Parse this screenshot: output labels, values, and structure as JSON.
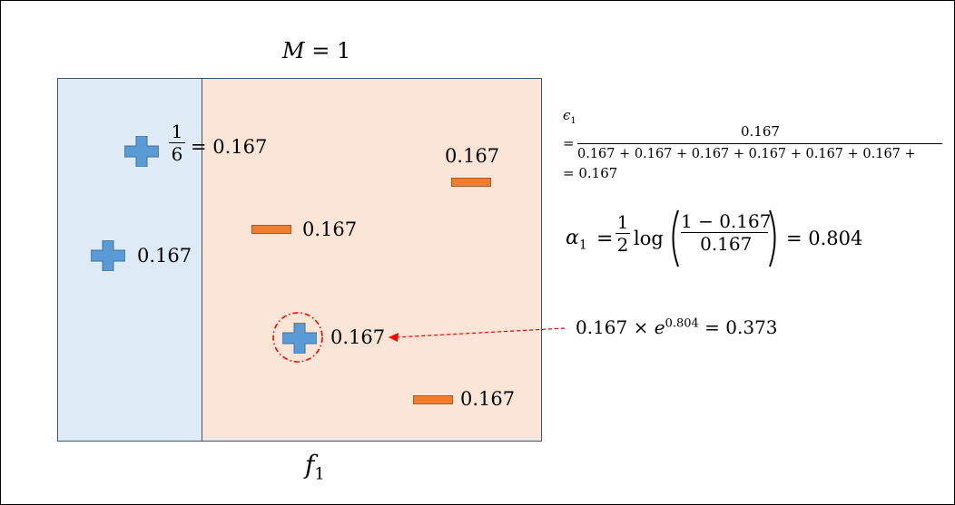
{
  "title": {
    "var": "M",
    "eq": "=",
    "value": "1"
  },
  "regions": {
    "left_color": "#deebf7",
    "right_color": "#fbe5d6",
    "border_color": "#44546a"
  },
  "classifier_label": {
    "base": "f",
    "sub": "1"
  },
  "points": {
    "plus_top": {
      "num": "1",
      "den": "6",
      "rest": "= 0.167"
    },
    "plus_left": {
      "label": "0.167"
    },
    "plus_circled": {
      "label": "0.167"
    },
    "minus_top_right": {
      "label": "0.167"
    },
    "minus_mid": {
      "label": "0.167"
    },
    "minus_bottom": {
      "label": "0.167"
    }
  },
  "colors": {
    "plus": "#5b9bd5",
    "plus_border": "#41719c",
    "minus": "#ed7d31",
    "highlight": "#ff0000"
  },
  "epsilon": {
    "symbol": "ϵ",
    "sub": "1",
    "eq": "=",
    "numerator": "0.167",
    "denominator": "0.167 + 0.167 + 0.167 + 0.167 + 0.167 + 0.167 +",
    "result": "= 0.167"
  },
  "alpha": {
    "symbol": "α",
    "sub": "1",
    "eq": "=",
    "half_num": "1",
    "half_den": "2",
    "log": "log",
    "inner_num": "1 − 0.167",
    "inner_den": "0.167",
    "result": "= 0.804"
  },
  "update": {
    "base": "0.167 × ",
    "e": "e",
    "exp": "0.804",
    "result": " = 0.373"
  }
}
